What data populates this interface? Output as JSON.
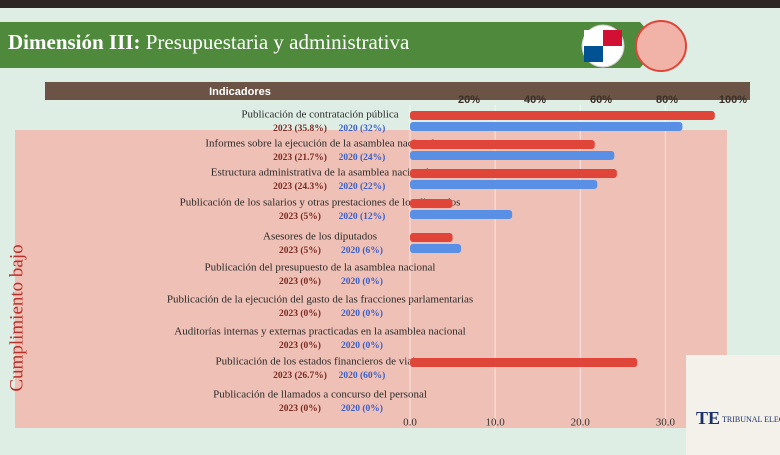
{
  "chart_data": {
    "type": "bar",
    "orientation": "horizontal",
    "title_bold": "Dimensión III:",
    "title": "Presupuestaria y administrativa",
    "header": "Indicadores",
    "side_label": "Cumplimiento bajo",
    "categories": [
      "Publicación de contratación pública",
      "Informes sobre la ejecución de la asamblea nacional",
      "Estructura administrativa de la asamblea nacional",
      "Publicación de los salarios y otras prestaciones de los diputados",
      "Asesores de los diputados",
      "Publicación del presupuesto de la asamblea nacional",
      "Publicación de la ejecución del gasto de las fracciones parlamentarias",
      "Auditorías internas y externas practicadas en la asamblea nacional",
      "Publicación de los estados financieros de viajes",
      "Publicación de llamados a concurso del personal"
    ],
    "series": [
      {
        "name": "2023",
        "color": "#e0453a",
        "label_color": "#7a2a22",
        "values": [
          35.8,
          21.7,
          24.3,
          5,
          5,
          0,
          0,
          0,
          26.7,
          0
        ],
        "value_labels": [
          "2023 (35.8%)",
          "2023 (21.7%)",
          "2023 (24.3%)",
          "2023 (5%)",
          "2023 (5%)",
          "2023 (0%)",
          "2023 (0%)",
          "2023 (0%)",
          "2023 (26.7%)",
          "2023 (0%)"
        ]
      },
      {
        "name": "2020",
        "color": "#5a8fe6",
        "label_color": "#3a5fc8",
        "values": [
          32,
          24,
          22,
          12,
          6,
          0,
          0,
          0,
          null,
          0
        ],
        "value_labels": [
          "2020 (32%)",
          "2020 (24%)",
          "2020 (22%)",
          "2020 (12%)",
          "2020 (6%)",
          "2020 (0%)",
          "2020 (0%)",
          "2020 (0%)",
          "2020 (60%)",
          "2020 (0%)"
        ]
      }
    ],
    "xlim": [
      0,
      37
    ],
    "xticks": [
      {
        "value": 0,
        "label": "0.0"
      },
      {
        "value": 10,
        "label": "10.0"
      },
      {
        "value": 20,
        "label": "20.0"
      },
      {
        "value": 30,
        "label": "30.0"
      }
    ],
    "x2lim": [
      0,
      100
    ],
    "x2ticks": [
      {
        "value": 20,
        "label": "20%"
      },
      {
        "value": 40,
        "label": "40%"
      },
      {
        "value": 60,
        "label": "60%"
      },
      {
        "value": 80,
        "label": "80%"
      },
      {
        "value": 100,
        "label": "100%"
      }
    ],
    "logo_mark": "TE",
    "logo_text": "TRIBUNAL ELECTORAL"
  }
}
